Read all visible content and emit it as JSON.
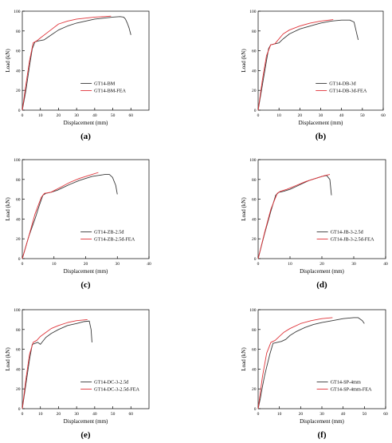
{
  "colors": {
    "exp": "#3a3a3a",
    "fea": "#e0343a"
  },
  "chart_data": [
    {
      "type": "line",
      "panel_label": "(a)",
      "xlabel": "Displacement (mm)",
      "ylabel": "Load (kN)",
      "xlim": [
        0,
        70
      ],
      "ylim": [
        0,
        100
      ],
      "xticks": [
        0,
        10,
        20,
        30,
        40,
        50,
        60
      ],
      "yticks": [
        0,
        20,
        40,
        60,
        80,
        100
      ],
      "legend_position": "center-right",
      "series": [
        {
          "name": "GT14-BM",
          "x": [
            0,
            2,
            4,
            5.5,
            7,
            9,
            12,
            16,
            20,
            25,
            30,
            35,
            40,
            45,
            50,
            54,
            56,
            57,
            58,
            59,
            60
          ],
          "y": [
            0,
            20,
            45,
            62,
            69,
            70,
            71,
            76,
            81,
            85,
            88,
            90,
            92,
            93,
            94,
            94.5,
            94,
            92,
            88,
            83,
            76
          ]
        },
        {
          "name": "GT14-BM-FEA",
          "x": [
            0,
            2,
            4,
            6,
            8,
            10,
            15,
            20,
            25,
            30,
            35,
            40,
            45,
            49
          ],
          "y": [
            0,
            26,
            50,
            68,
            70,
            73,
            80,
            87,
            90,
            92,
            93,
            94,
            94.5,
            95
          ]
        }
      ]
    },
    {
      "type": "line",
      "panel_label": "(b)",
      "xlabel": "Displacement (mm)",
      "ylabel": "Load (kN)",
      "xlim": [
        0,
        60
      ],
      "ylim": [
        0,
        100
      ],
      "xticks": [
        0,
        10,
        20,
        30,
        40,
        50,
        60
      ],
      "yticks": [
        0,
        20,
        40,
        60,
        80,
        100
      ],
      "legend_position": "center-right",
      "series": [
        {
          "name": "GT14-DB-3d",
          "x": [
            0,
            2,
            4,
            5,
            6,
            8,
            10,
            12,
            15,
            20,
            25,
            30,
            35,
            40,
            44,
            46,
            47,
            48
          ],
          "y": [
            0,
            25,
            50,
            62,
            66,
            67,
            68,
            72,
            77,
            82,
            85,
            88,
            90,
            91,
            91,
            89,
            80,
            71
          ]
        },
        {
          "name": "GT14-DB-3d-FEA",
          "x": [
            0,
            2,
            4,
            6,
            8,
            10,
            12,
            15,
            20,
            25,
            30,
            36
          ],
          "y": [
            0,
            30,
            55,
            66,
            67,
            72,
            77,
            81,
            85,
            88,
            90,
            91.5
          ]
        }
      ]
    },
    {
      "type": "line",
      "panel_label": "(c)",
      "xlabel": "Displacement (mm)",
      "ylabel": "Load (kN)",
      "xlim": [
        0,
        40
      ],
      "ylim": [
        0,
        100
      ],
      "xticks": [
        0,
        10,
        20,
        30,
        40
      ],
      "yticks": [
        0,
        20,
        40,
        60,
        80,
        100
      ],
      "legend_position": "center-right",
      "series": [
        {
          "name": "GT14-ZB-2.5d",
          "x": [
            0,
            2,
            4,
            5.5,
            6.5,
            7.5,
            9,
            11,
            13,
            15,
            18,
            20,
            22,
            24,
            26,
            27.5,
            28.5,
            29.5,
            30
          ],
          "y": [
            0,
            22,
            40,
            55,
            64,
            66,
            67,
            69,
            72,
            75,
            79,
            81,
            83,
            84,
            85,
            85,
            82,
            74,
            65
          ]
        },
        {
          "name": "GT14-ZB-2.5d-FEA",
          "x": [
            0,
            2,
            4,
            6,
            7,
            9,
            12,
            15,
            18,
            21,
            24
          ],
          "y": [
            0,
            22,
            45,
            62,
            66,
            67,
            72,
            77,
            81,
            84,
            87
          ]
        }
      ]
    },
    {
      "type": "line",
      "panel_label": "(d)",
      "xlabel": "Displacement (mm)",
      "ylabel": "Load (kN)",
      "xlim": [
        0,
        40
      ],
      "ylim": [
        0,
        100
      ],
      "xticks": [
        0,
        10,
        20,
        30,
        40
      ],
      "yticks": [
        0,
        20,
        40,
        60,
        80,
        100
      ],
      "legend_position": "center-right",
      "series": [
        {
          "name": "GT14-JB-3-2.5d",
          "x": [
            0,
            2,
            4,
            5.5,
            6.5,
            8,
            10,
            12,
            14,
            16,
            18,
            20,
            21.5,
            22.5,
            23
          ],
          "y": [
            0,
            25,
            48,
            64,
            67,
            68,
            70,
            73,
            76,
            79,
            81,
            83,
            84,
            80,
            64
          ]
        },
        {
          "name": "GT14-JB-3-2.5d-FEA",
          "x": [
            0,
            2,
            4,
            6,
            7,
            9,
            12,
            15,
            18,
            21,
            22.5
          ],
          "y": [
            0,
            26,
            50,
            66,
            68,
            70,
            74,
            78,
            81,
            84,
            85
          ]
        }
      ]
    },
    {
      "type": "line",
      "panel_label": "(e)",
      "xlabel": "Displacement (mm)",
      "ylabel": "Load (kN)",
      "xlim": [
        0,
        70
      ],
      "ylim": [
        0,
        100
      ],
      "xticks": [
        0,
        10,
        20,
        30,
        40,
        50,
        60
      ],
      "yticks": [
        0,
        20,
        40,
        60,
        80,
        100
      ],
      "legend_position": "center-right",
      "series": [
        {
          "name": "GT14-DC-3-2.5d",
          "x": [
            0,
            2,
            4,
            5.5,
            7,
            8.5,
            10,
            13,
            16,
            20,
            25,
            30,
            34,
            37,
            38,
            38.5
          ],
          "y": [
            0,
            25,
            50,
            65,
            66,
            67,
            65,
            72,
            76,
            80,
            84,
            86,
            88,
            88.5,
            80,
            67
          ]
        },
        {
          "name": "GT14-DC-3-2.5d-FEA",
          "x": [
            0,
            2,
            4,
            6,
            8,
            10,
            13,
            16,
            20,
            25,
            30,
            36
          ],
          "y": [
            0,
            30,
            55,
            67,
            69,
            73,
            77,
            81,
            84,
            87,
            89,
            90
          ]
        }
      ]
    },
    {
      "type": "line",
      "panel_label": "(f)",
      "xlabel": "Displacement (mm)",
      "ylabel": "Load (kN)",
      "xlim": [
        0,
        60
      ],
      "ylim": [
        0,
        100
      ],
      "xticks": [
        0,
        10,
        20,
        30,
        40,
        50,
        60
      ],
      "yticks": [
        0,
        20,
        40,
        60,
        80,
        100
      ],
      "legend_position": "center-right",
      "series": [
        {
          "name": "GT14-SP-4mm",
          "x": [
            0,
            1,
            2,
            3,
            4,
            5.5,
            7,
            9,
            11,
            13,
            15,
            18,
            22,
            26,
            30,
            35,
            40,
            45,
            47,
            49,
            50
          ],
          "y": [
            0,
            10,
            22,
            33,
            42,
            55,
            66,
            67,
            68,
            70,
            74,
            78,
            82,
            85,
            87,
            89,
            91,
            92,
            92,
            89,
            86
          ]
        },
        {
          "name": "GT14-SP-4mm-FEA",
          "x": [
            0,
            2,
            4,
            6,
            8,
            10,
            12,
            15,
            20,
            25,
            30,
            35
          ],
          "y": [
            0,
            32,
            56,
            67,
            69,
            73,
            77,
            81,
            86,
            89,
            91,
            92
          ]
        }
      ]
    }
  ]
}
